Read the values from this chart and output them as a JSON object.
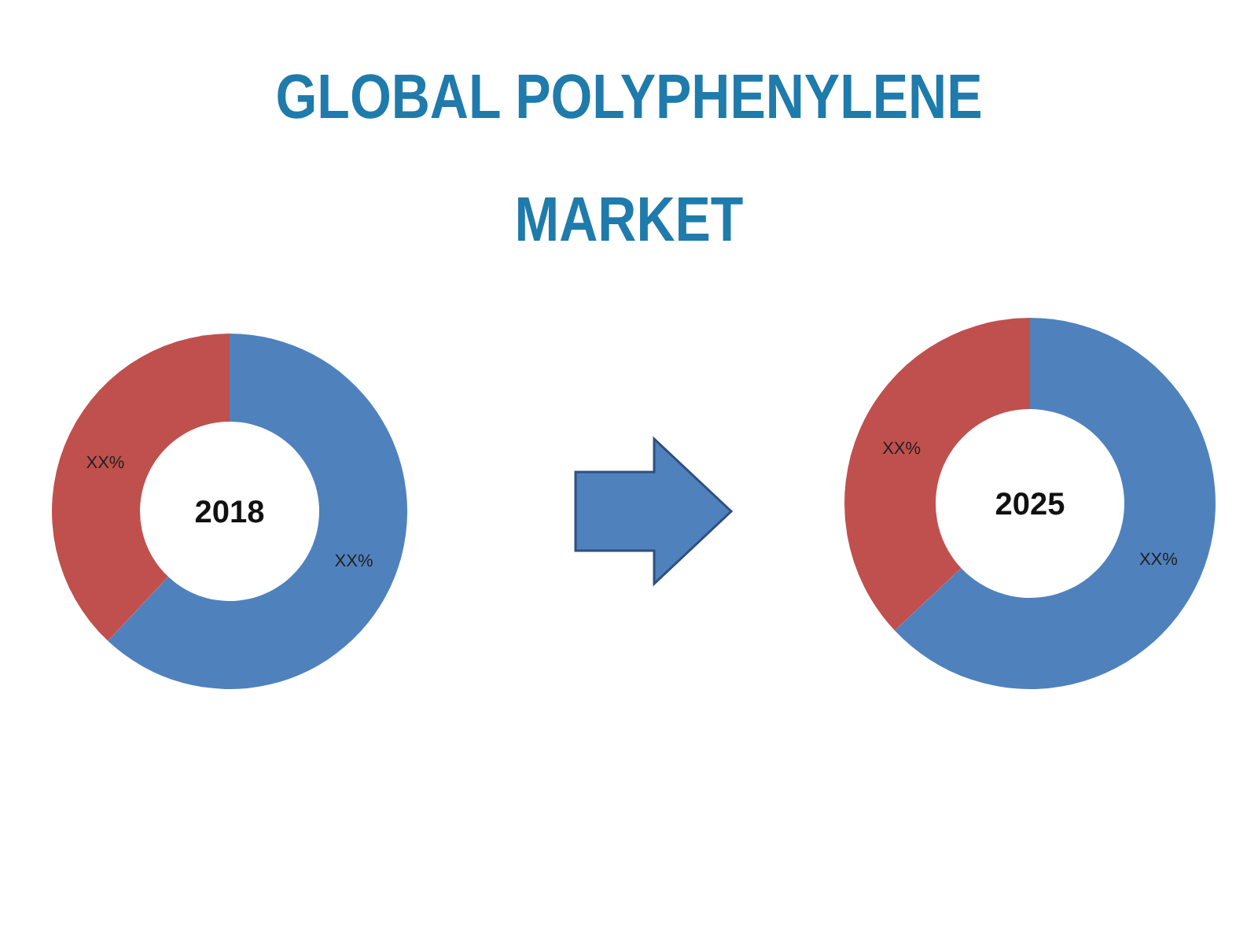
{
  "chart_data": [
    {
      "type": "donut",
      "title": "GLOBAL POLYPHENYLENE MARKET",
      "annotations": [
        "2018"
      ],
      "categories": [
        null,
        null
      ],
      "values": [
        62,
        38
      ],
      "colors": [
        "#4f81bd",
        "#c0504d"
      ],
      "value_labels": [
        "XX%",
        "XX%"
      ],
      "legend": false
    },
    {
      "type": "donut",
      "annotations": [
        "2025"
      ],
      "categories": [
        null,
        null
      ],
      "values": [
        63,
        37
      ],
      "colors": [
        "#4f81bd",
        "#c0504d"
      ],
      "value_labels": [
        "XX%",
        "XX%"
      ],
      "legend": false
    }
  ]
}
